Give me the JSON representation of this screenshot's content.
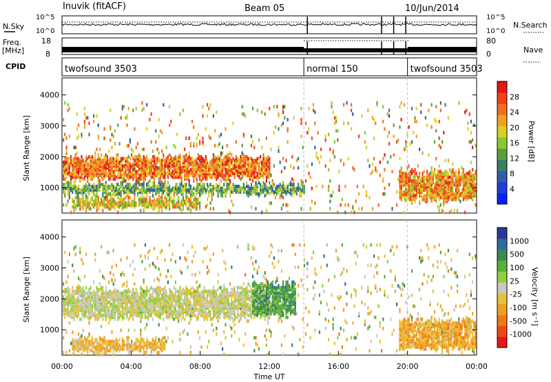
{
  "header": {
    "station": "Inuvik (fitACF)",
    "beam": "Beam 05",
    "date": "10/Jun/2014"
  },
  "params": {
    "nsky_label": "N.Sky",
    "nsky_ticks": [
      "10^5",
      "10^0"
    ],
    "nsearch_label": "N.Search",
    "nsearch_ticks": [
      "10^5",
      "10^0"
    ],
    "freq_label": "Freq.",
    "freq_unit": "[MHz]",
    "freq_ticks": [
      "18",
      "8"
    ],
    "nave_label": "Nave",
    "nave_ticks": [
      "80",
      "0"
    ],
    "cpid_label": "CPID",
    "cpid_segments": [
      {
        "label": "twofsound 3503",
        "start_hour": 0,
        "end_hour": 14.0
      },
      {
        "label": "normal 150",
        "start_hour": 14.0,
        "end_hour": 20.0
      },
      {
        "label": "twofsound 3503",
        "start_hour": 20.0,
        "end_hour": 24
      }
    ]
  },
  "x_axis": {
    "label": "Time UT",
    "ticks": [
      "00:00",
      "04:00",
      "08:00",
      "12:00",
      "16:00",
      "20:00",
      "00:00"
    ],
    "tick_hours": [
      0,
      4,
      8,
      12,
      16,
      20,
      24
    ]
  },
  "y_axis": {
    "label": "Slant Range [km]",
    "ticks": [
      "1000",
      "2000",
      "3000",
      "4000"
    ],
    "tick_values": [
      1000,
      2000,
      3000,
      4000
    ],
    "range_km": [
      180,
      4550
    ]
  },
  "power_scale": {
    "label": "Power [dB]",
    "ticks": [
      "4",
      "8",
      "12",
      "16",
      "20",
      "24",
      "28"
    ],
    "colors": [
      "#0a20ff",
      "#1e40d8",
      "#2e5ea8",
      "#3d7d68",
      "#58a040",
      "#8cc830",
      "#d8d020",
      "#f0a020",
      "#f07020",
      "#f04018",
      "#e01818"
    ]
  },
  "velocity_scale": {
    "label": "Velocity [m s^-1]",
    "ticks": [
      "1000",
      "500",
      "100",
      "25",
      "-25",
      "-100",
      "-500",
      "-1000"
    ],
    "colors": [
      "#2a3a9a",
      "#2e6aa0",
      "#3c8a58",
      "#58b030",
      "#90d040",
      "#c8c8c0",
      "#e8c040",
      "#f0a020",
      "#f07818",
      "#f04818",
      "#e81818"
    ]
  },
  "chart_data": {
    "type": "heatmap",
    "panels": [
      {
        "name": "Power",
        "ylabel": "Slant Range [km]",
        "colorbar_label": "Power [dB]",
        "colorbar_range": [
          0,
          30
        ],
        "features": [
          {
            "description": "main echo band",
            "start_hour": 0.0,
            "end_hour": 12.0,
            "range_km": [
              1300,
              2000
            ],
            "power_db": 24
          },
          {
            "description": "lower band",
            "start_hour": 0.0,
            "end_hour": 14.0,
            "range_km": [
              800,
              1100
            ],
            "power_db": 12
          },
          {
            "description": "near range band",
            "start_hour": 0.5,
            "end_hour": 8.0,
            "range_km": [
              350,
              650
            ],
            "power_db": 18
          },
          {
            "description": "post-20UT near band",
            "start_hour": 19.5,
            "end_hour": 24.0,
            "range_km": [
              600,
              1500
            ],
            "power_db": 22
          }
        ]
      },
      {
        "name": "Velocity",
        "ylabel": "Slant Range [km]",
        "colorbar_label": "Velocity [m s^-1]",
        "colorbar_range": [
          -1000,
          1000
        ],
        "features": [
          {
            "description": "ground scatter band",
            "start_hour": 0.0,
            "end_hour": 12.0,
            "range_km": [
              1400,
              2300
            ],
            "velocity": 0
          },
          {
            "description": "near range negative",
            "start_hour": 0.5,
            "end_hour": 6.0,
            "range_km": [
              300,
              700
            ],
            "velocity": -150
          },
          {
            "description": "positive around 12UT",
            "start_hour": 11.0,
            "end_hour": 13.5,
            "range_km": [
              1500,
              2500
            ],
            "velocity": 300
          },
          {
            "description": "post-20UT mixed",
            "start_hour": 19.5,
            "end_hour": 24.0,
            "range_km": [
              400,
              1300
            ],
            "velocity": -200
          }
        ]
      }
    ],
    "x_range_hours": [
      0,
      24
    ],
    "y_range_km": [
      180,
      4550
    ],
    "xlabel": "Time UT",
    "mode_change_hours": [
      14.0,
      20.0
    ]
  }
}
